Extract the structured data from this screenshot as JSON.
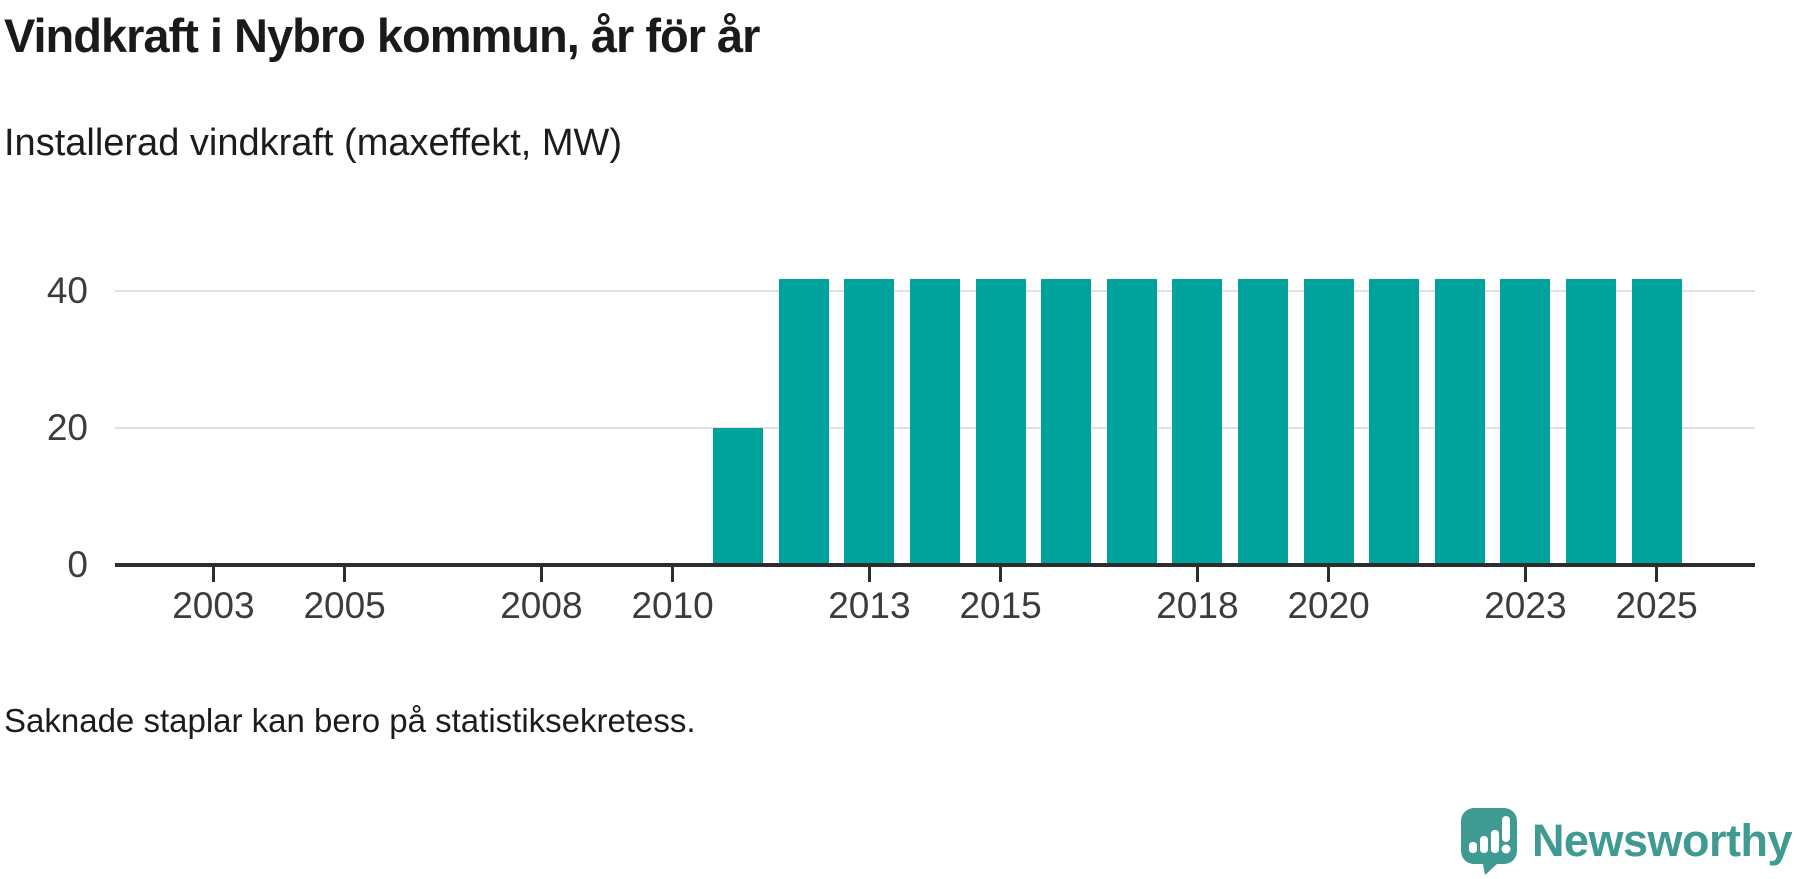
{
  "header": {
    "title": "Vindkraft i Nybro kommun, år för år",
    "subtitle": "Installerad vindkraft (maxeffekt, MW)"
  },
  "footer": {
    "note": "Saknade staplar kan bero på statistiksekretess."
  },
  "brand": {
    "name": "Newsworthy",
    "icon": "newsworthy-speech-bubble-bar-chart-icon",
    "color": "#3f9a91"
  },
  "colors": {
    "bar": "#00a39b",
    "axis": "#2d2d2d",
    "grid": "#e1e1e1",
    "text": "#1a1a1a",
    "tick_text": "#3c3c3c"
  },
  "chart_data": {
    "type": "bar",
    "title": "Vindkraft i Nybro kommun, år för år",
    "subtitle": "Installerad vindkraft (maxeffekt, MW)",
    "xlabel": "",
    "ylabel": "Installerad vindkraft (maxeffekt, MW)",
    "categories": [
      2002,
      2003,
      2004,
      2005,
      2006,
      2007,
      2008,
      2009,
      2010,
      2011,
      2012,
      2013,
      2014,
      2015,
      2016,
      2017,
      2018,
      2019,
      2020,
      2021,
      2022,
      2023,
      2024,
      2025
    ],
    "values": [
      null,
      null,
      null,
      null,
      null,
      null,
      null,
      null,
      null,
      20,
      41.7,
      41.7,
      41.7,
      41.7,
      41.7,
      41.7,
      41.7,
      41.7,
      41.7,
      41.7,
      41.7,
      41.7,
      41.7,
      41.7
    ],
    "x_tick_labels": [
      "2003",
      "2005",
      "2008",
      "2010",
      "2013",
      "2015",
      "2018",
      "2020",
      "2023",
      "2025"
    ],
    "y_ticks": [
      0,
      20,
      40
    ],
    "ylim": [
      0,
      48.9
    ],
    "grid": "horizontal",
    "legend": "none",
    "bar_color": "#00a39b",
    "note": "Bars missing for 2002-2010 (no installed capacity shown); single 20 MW bar in 2011; constant ~41.7 MW 2012-2025"
  }
}
